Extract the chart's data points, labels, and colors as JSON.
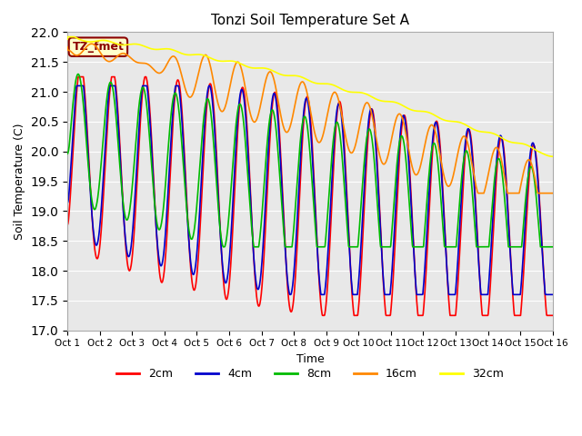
{
  "title": "Tonzi Soil Temperature Set A",
  "xlabel": "Time",
  "ylabel": "Soil Temperature (C)",
  "ylim": [
    17.0,
    22.0
  ],
  "yticks": [
    17.0,
    17.5,
    18.0,
    18.5,
    19.0,
    19.5,
    20.0,
    20.5,
    21.0,
    21.5,
    22.0
  ],
  "annotation": "TZ_fmet",
  "annotation_color": "#8B0000",
  "annotation_bg": "#FFFFCC",
  "bg_color": "#E8E8E8",
  "line_colors": {
    "2cm": "#FF0000",
    "4cm": "#0000CC",
    "8cm": "#00BB00",
    "16cm": "#FF8800",
    "32cm": "#FFFF00"
  },
  "line_width": 1.2,
  "xtick_labels": [
    "Oct 1",
    "Oct 2",
    "Oct 3",
    "Oct 4",
    "Oct 5",
    "Oct 6",
    "Oct 7",
    "Oct 8",
    "Oct 9",
    "Oct 10",
    "Oct 11",
    "Oct 12",
    "Oct 13",
    "Oct 14",
    "Oct 15",
    "Oct 16"
  ]
}
